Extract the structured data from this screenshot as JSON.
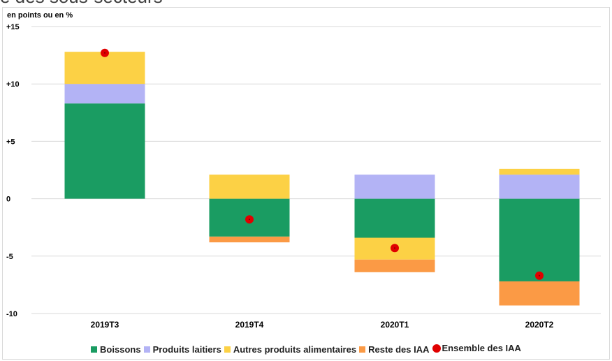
{
  "header": {
    "title_fragment": "e des sous-secteurs"
  },
  "chart_data": {
    "type": "bar",
    "stacked": true,
    "unit_label": "en points ou en %",
    "categories": [
      "2019T3",
      "2019T4",
      "2020T1",
      "2020T2"
    ],
    "series": [
      {
        "name": "Boissons",
        "color": "#1a9c62",
        "values": [
          8.3,
          -3.3,
          -3.4,
          -7.2
        ]
      },
      {
        "name": "Produits laitiers",
        "color": "#b3b3f5",
        "values": [
          1.7,
          0.0,
          2.1,
          2.1
        ]
      },
      {
        "name": "Autres produits alimentaires",
        "color": "#fcd145",
        "values": [
          2.8,
          2.1,
          -1.9,
          0.5
        ]
      },
      {
        "name": "Reste des IAA",
        "color": "#fb9a45",
        "values": [
          0.0,
          -0.5,
          -1.1,
          -2.1
        ]
      }
    ],
    "marker_series": {
      "name": "Ensemble des IAA",
      "color": "#e00000",
      "values": [
        12.7,
        -1.8,
        -4.3,
        -6.7
      ]
    },
    "yticks": [
      "+15",
      "+10",
      "+5",
      "0",
      "-5",
      "-10"
    ],
    "ytick_values": [
      15,
      10,
      5,
      0,
      -5,
      -10
    ],
    "ylim": [
      -10,
      15
    ],
    "grid": true,
    "legend_position": "bottom"
  }
}
